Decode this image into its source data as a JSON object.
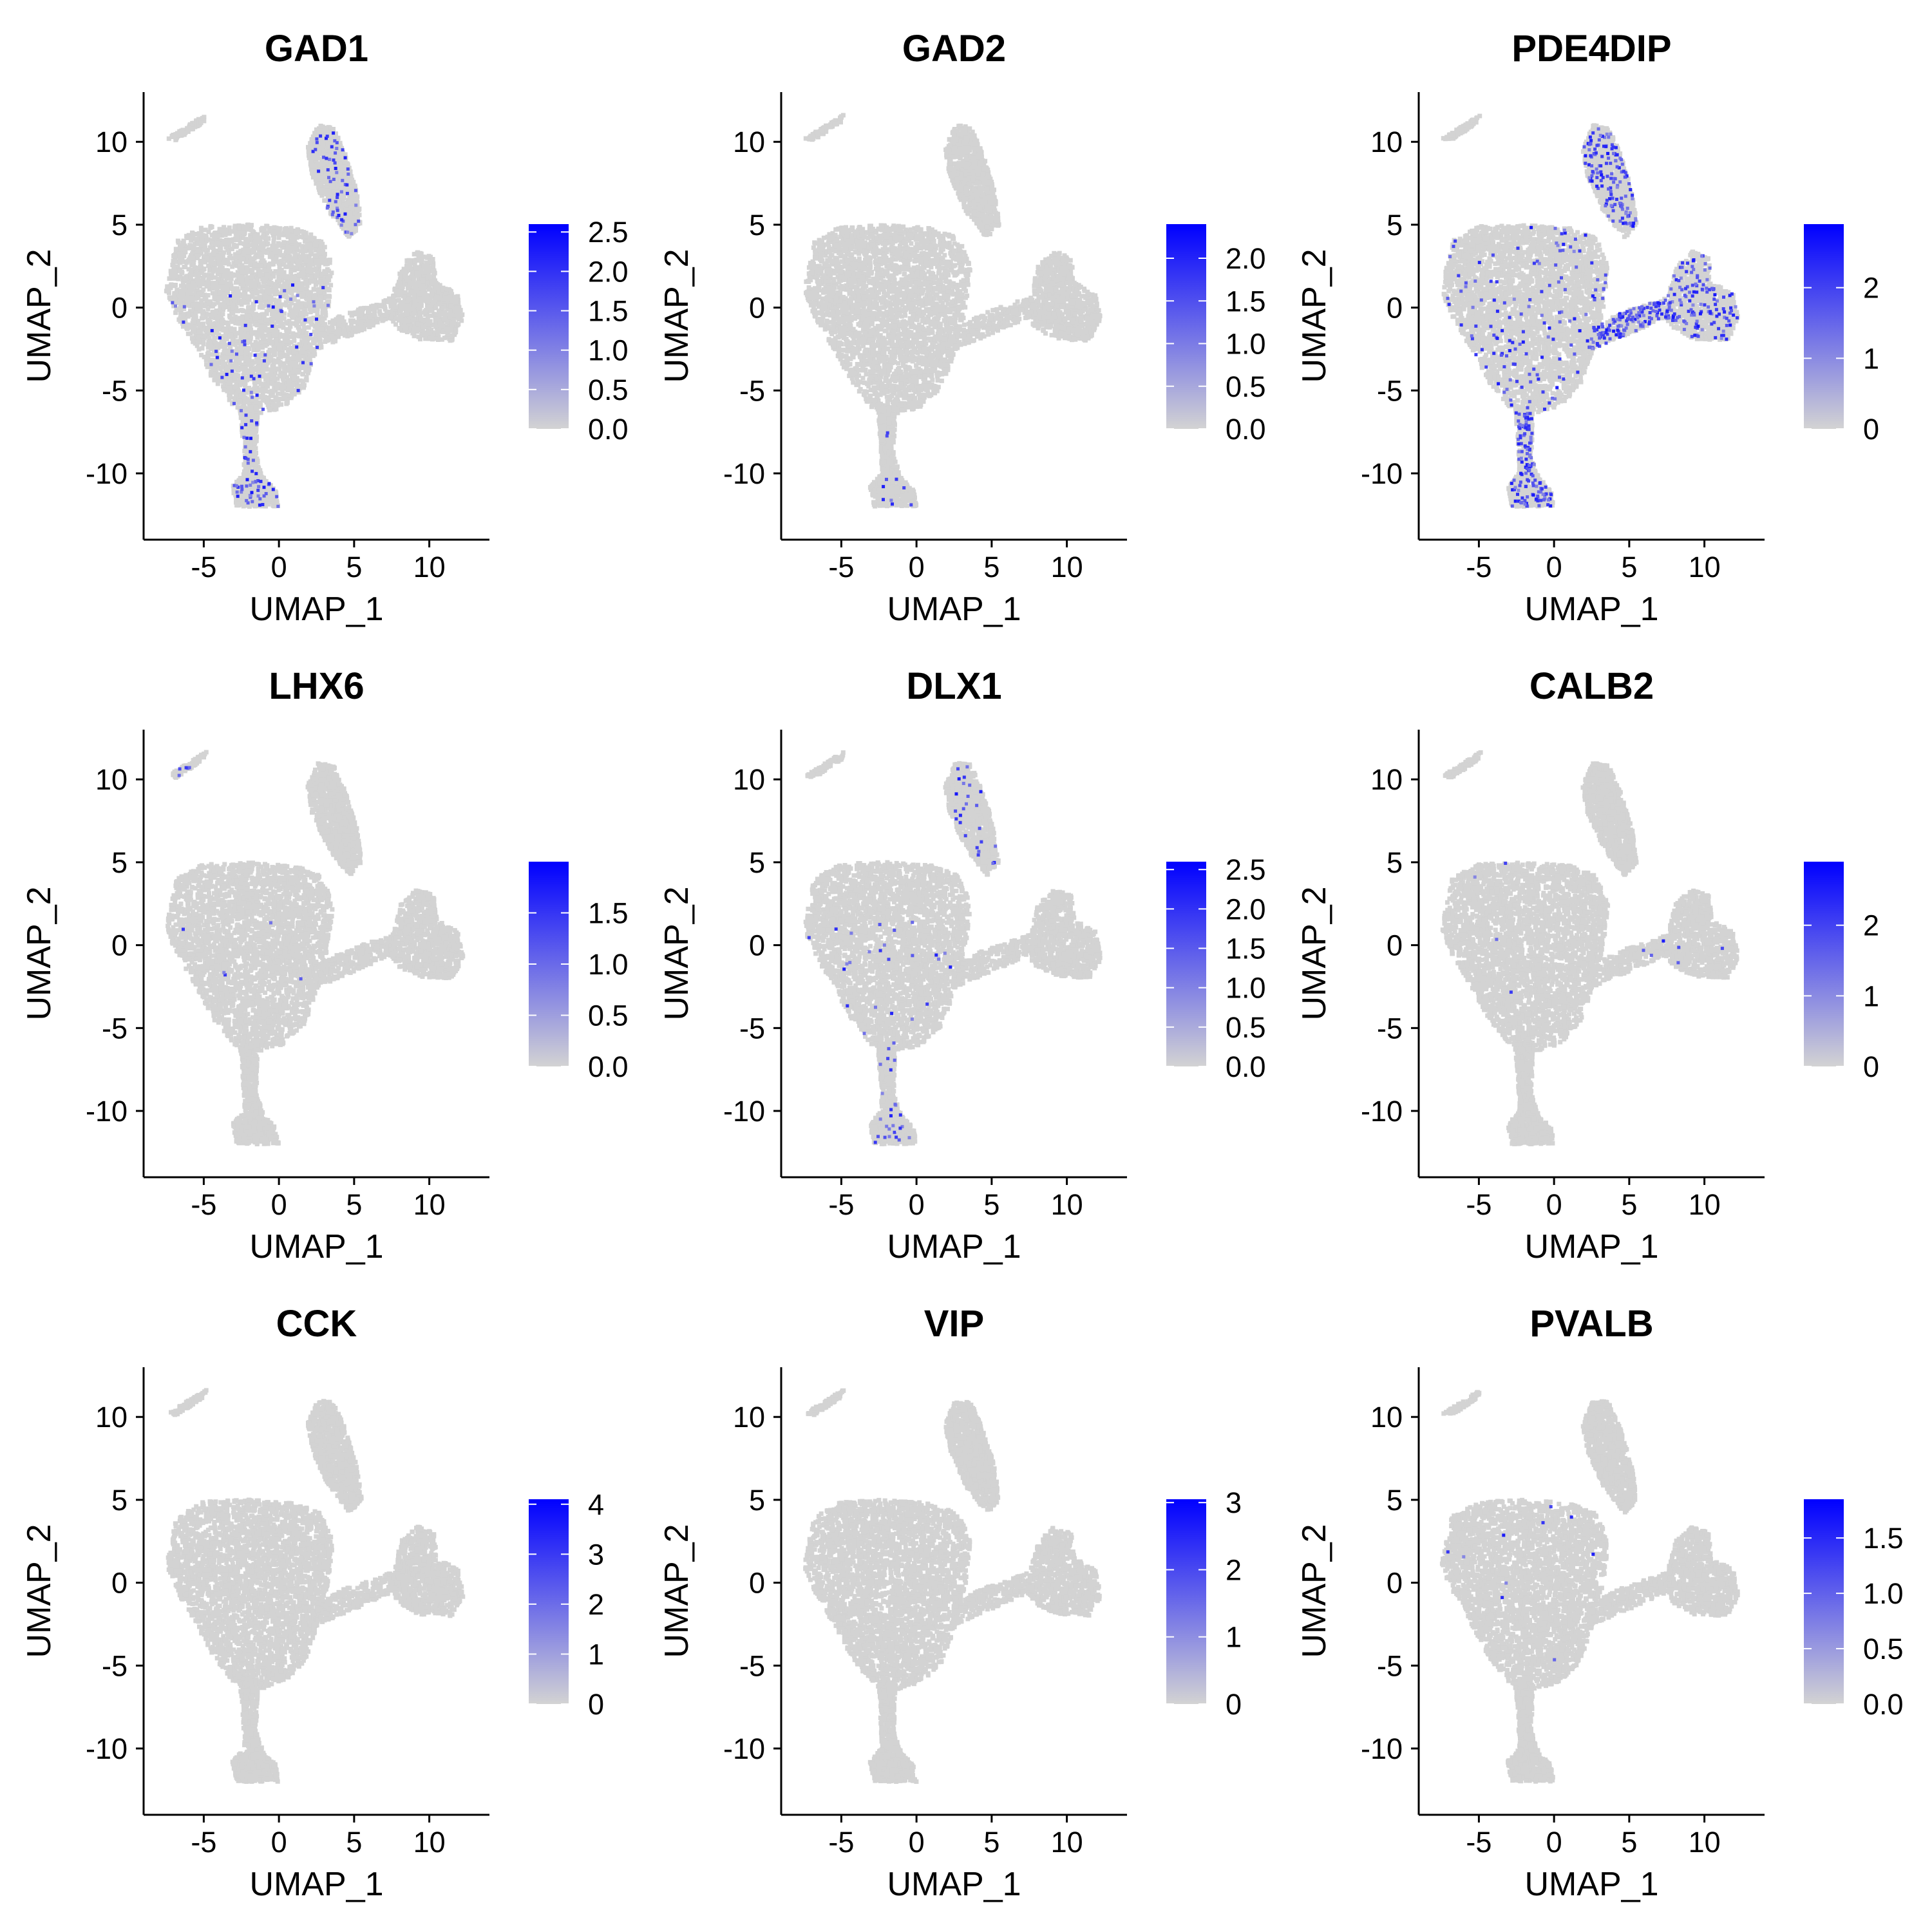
{
  "chart_data": [
    {
      "type": "scatter",
      "title": "GAD1",
      "xlabel": "UMAP_1",
      "ylabel": "UMAP_2",
      "xlim": [
        -9,
        14
      ],
      "ylim": [
        -14,
        13
      ],
      "x_ticks": [
        -5,
        0,
        5,
        10
      ],
      "y_ticks": [
        -10,
        -5,
        0,
        5,
        10
      ],
      "x_tick_labels": [
        "-5",
        "0",
        "5",
        "10"
      ],
      "y_tick_labels": [
        "-10",
        "-5",
        "0",
        "5",
        "10"
      ],
      "point_color": "#d3d3d3",
      "high_color": "#0000ff",
      "grid": false,
      "legend": {
        "position": "right",
        "min": 0,
        "max": 2.6,
        "ticks": [
          0,
          0.5,
          1,
          1.5,
          2,
          2.5
        ],
        "tick_labels": [
          "0.0",
          "0.5",
          "1.0",
          "1.5",
          "2.0",
          "2.5"
        ]
      },
      "expression_level": "moderate",
      "expressing_regions": [
        "main-cluster-lower",
        "upper-island",
        "bottom-tail"
      ]
    },
    {
      "type": "scatter",
      "title": "GAD2",
      "xlabel": "UMAP_1",
      "ylabel": "UMAP_2",
      "xlim": [
        -9,
        14
      ],
      "ylim": [
        -14,
        13
      ],
      "x_ticks": [
        -5,
        0,
        5,
        10
      ],
      "y_ticks": [
        -10,
        -5,
        0,
        5,
        10
      ],
      "x_tick_labels": [
        "-5",
        "0",
        "5",
        "10"
      ],
      "y_tick_labels": [
        "-10",
        "-5",
        "0",
        "5",
        "10"
      ],
      "point_color": "#d3d3d3",
      "high_color": "#0000ff",
      "grid": false,
      "legend": {
        "position": "right",
        "min": 0,
        "max": 2.4,
        "ticks": [
          0,
          0.5,
          1,
          1.5,
          2
        ],
        "tick_labels": [
          "0.0",
          "0.5",
          "1.0",
          "1.5",
          "2.0"
        ]
      },
      "expression_level": "very-sparse",
      "expressing_regions": [
        "bottom-tail"
      ]
    },
    {
      "type": "scatter",
      "title": "PDE4DIP",
      "xlabel": "UMAP_1",
      "ylabel": "UMAP_2",
      "xlim": [
        -9,
        14
      ],
      "ylim": [
        -14,
        13
      ],
      "x_ticks": [
        -5,
        0,
        5,
        10
      ],
      "y_ticks": [
        -10,
        -5,
        0,
        5,
        10
      ],
      "x_tick_labels": [
        "-5",
        "0",
        "5",
        "10"
      ],
      "y_tick_labels": [
        "-10",
        "-5",
        "0",
        "5",
        "10"
      ],
      "point_color": "#d3d3d3",
      "high_color": "#0000ff",
      "grid": false,
      "legend": {
        "position": "right",
        "min": 0,
        "max": 2.9,
        "ticks": [
          0,
          1,
          2
        ],
        "tick_labels": [
          "0",
          "1",
          "2"
        ]
      },
      "expression_level": "dense",
      "expressing_regions": [
        "main-cluster",
        "upper-island",
        "right-arm",
        "bottom-tail"
      ]
    },
    {
      "type": "scatter",
      "title": "LHX6",
      "xlabel": "UMAP_1",
      "ylabel": "UMAP_2",
      "xlim": [
        -9,
        14
      ],
      "ylim": [
        -14,
        13
      ],
      "x_ticks": [
        -5,
        0,
        5,
        10
      ],
      "y_ticks": [
        -10,
        -5,
        0,
        5,
        10
      ],
      "x_tick_labels": [
        "-5",
        "0",
        "5",
        "10"
      ],
      "y_tick_labels": [
        "-10",
        "-5",
        "0",
        "5",
        "10"
      ],
      "point_color": "#d3d3d3",
      "high_color": "#0000ff",
      "grid": false,
      "legend": {
        "position": "right",
        "min": 0,
        "max": 2.0,
        "ticks": [
          0,
          0.5,
          1,
          1.5
        ],
        "tick_labels": [
          "0.0",
          "0.5",
          "1.0",
          "1.5"
        ]
      },
      "expression_level": "very-sparse",
      "expressing_regions": [
        "top-left-sliver",
        "main-cluster"
      ]
    },
    {
      "type": "scatter",
      "title": "DLX1",
      "xlabel": "UMAP_1",
      "ylabel": "UMAP_2",
      "xlim": [
        -9,
        14
      ],
      "ylim": [
        -14,
        13
      ],
      "x_ticks": [
        -5,
        0,
        5,
        10
      ],
      "y_ticks": [
        -10,
        -5,
        0,
        5,
        10
      ],
      "x_tick_labels": [
        "-5",
        "0",
        "5",
        "10"
      ],
      "y_tick_labels": [
        "-10",
        "-5",
        "0",
        "5",
        "10"
      ],
      "point_color": "#d3d3d3",
      "high_color": "#0000ff",
      "grid": false,
      "legend": {
        "position": "right",
        "min": 0,
        "max": 2.6,
        "ticks": [
          0,
          0.5,
          1,
          1.5,
          2,
          2.5
        ],
        "tick_labels": [
          "0.0",
          "0.5",
          "1.0",
          "1.5",
          "2.0",
          "2.5"
        ]
      },
      "expression_level": "sparse",
      "expressing_regions": [
        "main-cluster-lower",
        "upper-island",
        "bottom-tail"
      ]
    },
    {
      "type": "scatter",
      "title": "CALB2",
      "xlabel": "UMAP_1",
      "ylabel": "UMAP_2",
      "xlim": [
        -9,
        14
      ],
      "ylim": [
        -14,
        13
      ],
      "x_ticks": [
        -5,
        0,
        5,
        10
      ],
      "y_ticks": [
        -10,
        -5,
        0,
        5,
        10
      ],
      "x_tick_labels": [
        "-5",
        "0",
        "5",
        "10"
      ],
      "y_tick_labels": [
        "-10",
        "-5",
        "0",
        "5",
        "10"
      ],
      "point_color": "#d3d3d3",
      "high_color": "#0000ff",
      "grid": false,
      "legend": {
        "position": "right",
        "min": 0,
        "max": 2.9,
        "ticks": [
          0,
          1,
          2
        ],
        "tick_labels": [
          "0",
          "1",
          "2"
        ]
      },
      "expression_level": "very-sparse",
      "expressing_regions": [
        "main-cluster",
        "right-arm"
      ]
    },
    {
      "type": "scatter",
      "title": "CCK",
      "xlabel": "UMAP_1",
      "ylabel": "UMAP_2",
      "xlim": [
        -9,
        14
      ],
      "ylim": [
        -14,
        13
      ],
      "x_ticks": [
        -5,
        0,
        5,
        10
      ],
      "y_ticks": [
        -10,
        -5,
        0,
        5,
        10
      ],
      "x_tick_labels": [
        "-5",
        "0",
        "5",
        "10"
      ],
      "y_tick_labels": [
        "-10",
        "-5",
        "0",
        "5",
        "10"
      ],
      "point_color": "#d3d3d3",
      "high_color": "#0000ff",
      "grid": false,
      "legend": {
        "position": "right",
        "min": 0,
        "max": 4.1,
        "ticks": [
          0,
          1,
          2,
          3,
          4
        ],
        "tick_labels": [
          "0",
          "1",
          "2",
          "3",
          "4"
        ]
      },
      "expression_level": "none-visible",
      "expressing_regions": []
    },
    {
      "type": "scatter",
      "title": "VIP",
      "xlabel": "UMAP_1",
      "ylabel": "UMAP_2",
      "xlim": [
        -9,
        14
      ],
      "ylim": [
        -14,
        13
      ],
      "x_ticks": [
        -5,
        0,
        5,
        10
      ],
      "y_ticks": [
        -10,
        -5,
        0,
        5,
        10
      ],
      "x_tick_labels": [
        "-5",
        "0",
        "5",
        "10"
      ],
      "y_tick_labels": [
        "-10",
        "-5",
        "0",
        "5",
        "10"
      ],
      "point_color": "#d3d3d3",
      "high_color": "#0000ff",
      "grid": false,
      "legend": {
        "position": "right",
        "min": 0,
        "max": 3.05,
        "ticks": [
          0,
          1,
          2,
          3
        ],
        "tick_labels": [
          "0",
          "1",
          "2",
          "3"
        ]
      },
      "expression_level": "none-visible",
      "expressing_regions": []
    },
    {
      "type": "scatter",
      "title": "PVALB",
      "xlabel": "UMAP_1",
      "ylabel": "UMAP_2",
      "xlim": [
        -9,
        14
      ],
      "ylim": [
        -14,
        13
      ],
      "x_ticks": [
        -5,
        0,
        5,
        10
      ],
      "y_ticks": [
        -10,
        -5,
        0,
        5,
        10
      ],
      "x_tick_labels": [
        "-5",
        "0",
        "5",
        "10"
      ],
      "y_tick_labels": [
        "-10",
        "-5",
        "0",
        "5",
        "10"
      ],
      "point_color": "#d3d3d3",
      "high_color": "#0000ff",
      "grid": false,
      "legend": {
        "position": "right",
        "min": 0,
        "max": 1.85,
        "ticks": [
          0,
          0.5,
          1,
          1.5
        ],
        "tick_labels": [
          "0.0",
          "0.5",
          "1.0",
          "1.5"
        ]
      },
      "expression_level": "very-sparse",
      "expressing_regions": [
        "main-cluster"
      ]
    }
  ]
}
